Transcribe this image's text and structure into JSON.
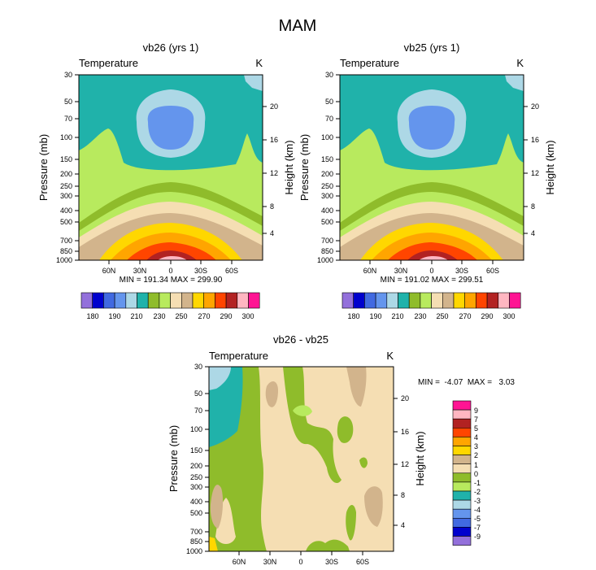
{
  "page_title": "MAM",
  "chart_data": [
    {
      "type": "contour",
      "title": "vb26 (yrs 1)",
      "left_label": "Temperature",
      "right_label": "K",
      "xlabel": "",
      "ylabel": "Pressure (mb)",
      "ylabel_right": "Height (km)",
      "x_ticks": [
        "60N",
        "30N",
        "0",
        "30S",
        "60S"
      ],
      "x_tick_values": [
        60,
        30,
        0,
        -30,
        -60
      ],
      "xlim": [
        90,
        -90
      ],
      "y_ticks": [
        "30",
        "50",
        "70",
        "100",
        "150",
        "200",
        "250",
        "300",
        "400",
        "500",
        "700",
        "850",
        "1000"
      ],
      "y_tick_values": [
        30,
        50,
        70,
        100,
        150,
        200,
        250,
        300,
        400,
        500,
        700,
        850,
        1000
      ],
      "ylim": [
        30,
        1000
      ],
      "height_ticks": [
        "20",
        "16",
        "12",
        "8",
        "4"
      ],
      "height_tick_values": [
        20,
        16,
        12,
        8,
        4
      ],
      "stats": "MIN = 191.34  MAX = 299.90",
      "contour_levels": [
        180,
        185,
        190,
        200,
        210,
        220,
        230,
        240,
        250,
        260,
        270,
        280,
        290,
        295,
        300
      ],
      "colorbar_labels": [
        "180",
        "190",
        "210",
        "230",
        "250",
        "270",
        "290",
        "300"
      ]
    },
    {
      "type": "contour",
      "title": "vb25 (yrs 1)",
      "left_label": "Temperature",
      "right_label": "K",
      "xlabel": "",
      "ylabel": "Pressure (mb)",
      "ylabel_right": "Height (km)",
      "x_ticks": [
        "60N",
        "30N",
        "0",
        "30S",
        "60S"
      ],
      "x_tick_values": [
        60,
        30,
        0,
        -30,
        -60
      ],
      "xlim": [
        90,
        -90
      ],
      "y_ticks": [
        "30",
        "50",
        "70",
        "100",
        "150",
        "200",
        "250",
        "300",
        "400",
        "500",
        "700",
        "850",
        "1000"
      ],
      "y_tick_values": [
        30,
        50,
        70,
        100,
        150,
        200,
        250,
        300,
        400,
        500,
        700,
        850,
        1000
      ],
      "ylim": [
        30,
        1000
      ],
      "height_ticks": [
        "20",
        "16",
        "12",
        "8",
        "4"
      ],
      "height_tick_values": [
        20,
        16,
        12,
        8,
        4
      ],
      "stats": "MIN = 191.02  MAX = 299.51",
      "contour_levels": [
        180,
        185,
        190,
        200,
        210,
        220,
        230,
        240,
        250,
        260,
        270,
        280,
        290,
        295,
        300
      ],
      "colorbar_labels": [
        "180",
        "190",
        "210",
        "230",
        "250",
        "270",
        "290",
        "300"
      ]
    },
    {
      "type": "contour",
      "title": "vb26 - vb25",
      "left_label": "Temperature",
      "right_label": "K",
      "xlabel": "",
      "ylabel": "Pressure (mb)",
      "ylabel_right": "Height (km)",
      "x_ticks": [
        "60N",
        "30N",
        "0",
        "30S",
        "60S"
      ],
      "x_tick_values": [
        60,
        30,
        0,
        -30,
        -60
      ],
      "xlim": [
        90,
        -90
      ],
      "y_ticks": [
        "30",
        "50",
        "70",
        "100",
        "150",
        "200",
        "250",
        "300",
        "400",
        "500",
        "700",
        "850",
        "1000"
      ],
      "y_tick_values": [
        30,
        50,
        70,
        100,
        150,
        200,
        250,
        300,
        400,
        500,
        700,
        850,
        1000
      ],
      "ylim": [
        30,
        1000
      ],
      "height_ticks": [
        "20",
        "16",
        "12",
        "8",
        "4"
      ],
      "height_tick_values": [
        20,
        16,
        12,
        8,
        4
      ],
      "stats": "MIN =  -4.07  MAX =   3.03",
      "contour_levels": [
        -9,
        -7,
        -5,
        -4,
        -3,
        -2,
        -1,
        0,
        1,
        2,
        3,
        4,
        5,
        7,
        9
      ],
      "colorbar_labels": [
        "9",
        "7",
        "5",
        "4",
        "3",
        "2",
        "1",
        "0",
        "-1",
        "-2",
        "-3",
        "-4",
        "-5",
        "-7",
        "-9"
      ]
    }
  ],
  "palettes": {
    "temperature": [
      "#9370db",
      "#0000cd",
      "#4169e1",
      "#6495ed",
      "#add8e6",
      "#20b2aa",
      "#8fbc2b",
      "#b8ea5e",
      "#f5deb3",
      "#d2b48c",
      "#ffd700",
      "#ffa500",
      "#ff4500",
      "#b22222",
      "#ffb6c1",
      "#ff1493"
    ],
    "difference_top_to_bottom": [
      "#ff1493",
      "#ffb6c1",
      "#b22222",
      "#ff4500",
      "#ffa500",
      "#ffd700",
      "#d2b48c",
      "#f5deb3",
      "#8fbc2b",
      "#b8ea5e",
      "#20b2aa",
      "#add8e6",
      "#6495ed",
      "#4169e1",
      "#0000cd",
      "#9370db"
    ]
  }
}
